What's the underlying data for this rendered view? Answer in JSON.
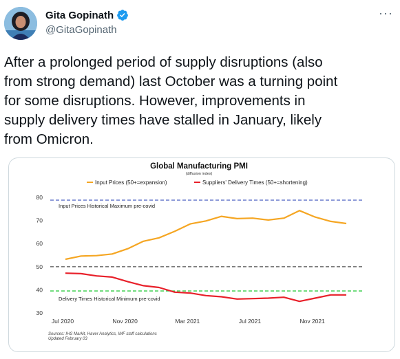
{
  "author": {
    "name": "Gita Gopinath",
    "handle": "@GitaGopinath",
    "verified_icon": "verified-badge-icon",
    "more_icon": "more-options-icon",
    "avatar_icon": "profile-avatar"
  },
  "tweet": {
    "line1": "After a prolonged period of supply disruptions (also",
    "line2": "from strong demand) last October was a turning point",
    "line3": "for some disruptions.  However, improvements in",
    "line4": "supply delivery times have stalled in January, likely",
    "line5": "from Omicron."
  },
  "colors": {
    "accent": "#1d9bf0",
    "input_prices": "#f5a623",
    "delivery_times": "#e8202a",
    "max_line": "#4a5fc1",
    "min_line": "#2ecc40",
    "neutral_line": "#666666"
  },
  "chart_data": {
    "type": "line",
    "title": "Global Manufacturing PMI",
    "subtitle": "(diffusion index)",
    "x_tick_labels": [
      "Jul 2020",
      "Nov 2020",
      "Mar 2021",
      "Jul 2021",
      "Nov 2021"
    ],
    "y_tick_labels": [
      "30",
      "40",
      "50",
      "60",
      "70",
      "80"
    ],
    "ylim": [
      30,
      80
    ],
    "months": [
      "2020-07",
      "2020-08",
      "2020-09",
      "2020-10",
      "2020-11",
      "2020-12",
      "2021-01",
      "2021-02",
      "2021-03",
      "2021-04",
      "2021-05",
      "2021-06",
      "2021-07",
      "2021-08",
      "2021-09",
      "2021-10",
      "2021-11",
      "2021-12",
      "2022-01"
    ],
    "series": [
      {
        "name": "Input Prices (50+=expansion)",
        "color": "#f5a623",
        "values": [
          53.2,
          54.6,
          54.8,
          55.5,
          57.8,
          61.0,
          62.5,
          65.3,
          68.5,
          69.8,
          71.8,
          70.8,
          71.0,
          70.2,
          71.0,
          74.3,
          71.5,
          69.6,
          68.7
        ]
      },
      {
        "name": "Suppliers' Delivery Times (50+=shortening)",
        "color": "#e8202a",
        "values": [
          47.2,
          47.0,
          46.0,
          45.5,
          43.5,
          41.8,
          41.0,
          39.0,
          38.6,
          37.5,
          37.0,
          36.0,
          36.2,
          36.4,
          36.8,
          35.0,
          36.4,
          37.8,
          37.8
        ]
      }
    ],
    "reference_lines": [
      {
        "label": "Input Prices Historical Maximum pre-covid",
        "value": 78.8,
        "color": "#4a5fc1"
      },
      {
        "label": "",
        "value": 50,
        "color": "#666666"
      },
      {
        "label": "Delivery Times Historical Minimum pre-covid",
        "value": 39.5,
        "color": "#2ecc40"
      }
    ],
    "legend_position": "top",
    "grid": false,
    "footnote1": "Sources: IHS Markit, Haver Analytics, IMF staff calculations",
    "footnote2": "Updated February 03"
  }
}
